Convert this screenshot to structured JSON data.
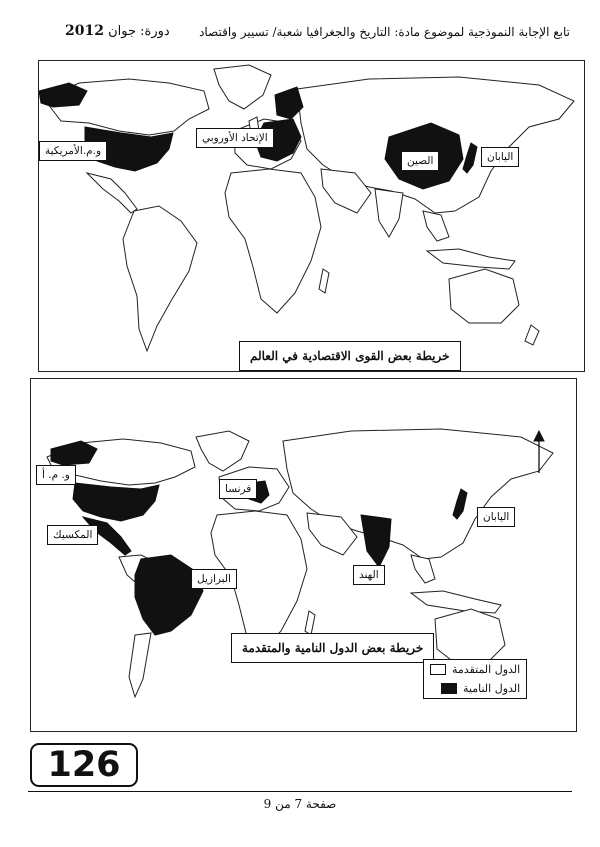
{
  "header": {
    "subject_line": "تابع الإجابة النموذجية لموضوع مادة: التاريخ والجغرافيا  شعبة/ تسيير واقتصاد",
    "session_label": "دورة: جوان",
    "session_year": "2012"
  },
  "map1": {
    "title": "خريطة  بعض القوى الاقتصادية   في العالم",
    "labels": {
      "usa": "و.م.الأمريكية",
      "eu": "الإتحاد الأوروبي",
      "china": "الصين",
      "japan": "اليابان"
    }
  },
  "map2": {
    "title": "خريطة بعض الدول النامية والمتقدمة",
    "labels": {
      "usa": "و. م. أ",
      "mexico": "المكسيك",
      "france": "فرنسا",
      "japan": "اليابان",
      "india": "الهند",
      "brazil": "البرازيل"
    },
    "legend": {
      "developed": "الدول المتقدمة",
      "developing": "الدول النامية"
    },
    "north_arrow_icon": "north-arrow-icon"
  },
  "page_badge": "126",
  "footer": "صفحة 7 من 9"
}
